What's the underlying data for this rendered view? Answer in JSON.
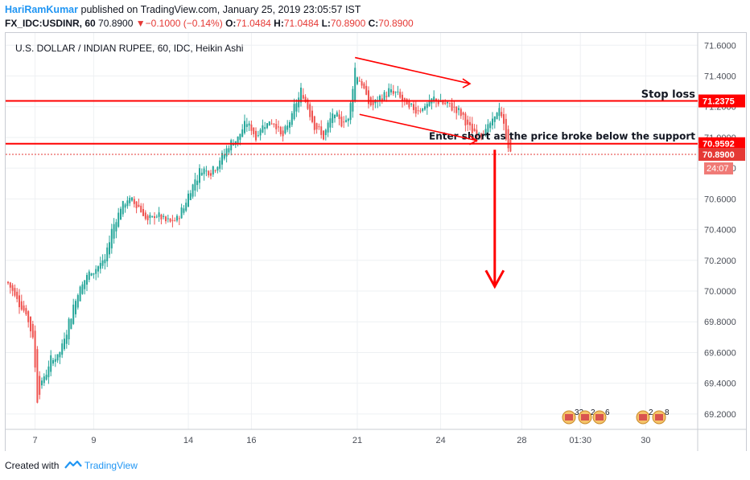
{
  "header": {
    "author": "HariRamKumar",
    "published_text": " published on TradingView.com, January 25, 2019 23:05:57 IST",
    "symbol": "FX_IDC:USDINR, 60",
    "last": "70.8900",
    "change_arrow": "▼",
    "change": "−0.1000 (−0.14%)",
    "open_label": "O:",
    "open": "71.0484",
    "high_label": "H:",
    "high": "71.0484",
    "low_label": "L:",
    "low": "70.8900",
    "close_label": "C:",
    "close": "70.8900"
  },
  "footer": {
    "created_with": "Created with",
    "brand": "TradingView",
    "logo_icon": "tradingview-logo-icon"
  },
  "colors": {
    "up": "#26a69a",
    "down": "#ef5350",
    "annotation": "#ff0000",
    "grid": "#eef0f3",
    "axis_text": "#4a4e57"
  },
  "chart_data": {
    "type": "candlestick",
    "title": "U.S. DOLLAR / INDIAN RUPEE, 60, IDC, Heikin Ashi",
    "ylim": [
      69.1,
      71.68
    ],
    "y_ticks": [
      "71.6000",
      "71.4000",
      "71.2000",
      "71.0000",
      "70.8000",
      "70.6000",
      "70.4000",
      "70.2000",
      "70.0000",
      "69.8000",
      "69.6000",
      "69.4000",
      "69.2000"
    ],
    "x_ticks": [
      "7",
      "9",
      "14",
      "16",
      "21",
      "24",
      "28",
      "01:30",
      "30"
    ],
    "x_tick_index": [
      12,
      38,
      80,
      108,
      155,
      192,
      228,
      254,
      283
    ],
    "waypoints": [
      [
        0,
        70.05
      ],
      [
        4,
        69.95
      ],
      [
        8,
        69.85
      ],
      [
        11,
        69.7
      ],
      [
        13,
        69.3
      ],
      [
        15,
        69.4
      ],
      [
        19,
        69.55
      ],
      [
        23,
        69.6
      ],
      [
        27,
        69.8
      ],
      [
        31,
        70.0
      ],
      [
        35,
        70.1
      ],
      [
        39,
        70.15
      ],
      [
        43,
        70.2
      ],
      [
        46,
        70.4
      ],
      [
        50,
        70.55
      ],
      [
        54,
        70.6
      ],
      [
        58,
        70.55
      ],
      [
        62,
        70.45
      ],
      [
        66,
        70.5
      ],
      [
        70,
        70.45
      ],
      [
        74,
        70.45
      ],
      [
        78,
        70.55
      ],
      [
        82,
        70.7
      ],
      [
        86,
        70.8
      ],
      [
        90,
        70.78
      ],
      [
        94,
        70.85
      ],
      [
        98,
        70.95
      ],
      [
        102,
        71.0
      ],
      [
        106,
        71.1
      ],
      [
        110,
        71.0
      ],
      [
        114,
        71.1
      ],
      [
        118,
        71.1
      ],
      [
        122,
        71.0
      ],
      [
        126,
        71.15
      ],
      [
        130,
        71.3
      ],
      [
        133,
        71.2
      ],
      [
        136,
        71.08
      ],
      [
        140,
        71.0
      ],
      [
        144,
        71.15
      ],
      [
        148,
        71.1
      ],
      [
        151,
        71.12
      ],
      [
        154,
        71.45
      ],
      [
        158,
        71.3
      ],
      [
        161,
        71.2
      ],
      [
        165,
        71.25
      ],
      [
        169,
        71.3
      ],
      [
        173,
        71.28
      ],
      [
        177,
        71.2
      ],
      [
        181,
        71.18
      ],
      [
        185,
        71.2
      ],
      [
        189,
        71.25
      ],
      [
        193,
        71.22
      ],
      [
        197,
        71.2
      ],
      [
        201,
        71.15
      ],
      [
        205,
        71.05
      ],
      [
        208,
        71.02
      ],
      [
        212,
        71.05
      ],
      [
        215,
        71.1
      ],
      [
        218,
        71.2
      ],
      [
        221,
        71.0
      ],
      [
        223,
        70.89
      ]
    ],
    "levels": [
      {
        "name": "Stop loss level",
        "value": 71.2375,
        "label": "71.2375",
        "color": "#ff0000"
      },
      {
        "name": "Support level",
        "value": 70.9592,
        "label": "70.9592",
        "color": "#ff0000"
      },
      {
        "name": "Last price",
        "value": 70.89,
        "label": "70.8900",
        "color": "#e53935",
        "dotted": true
      }
    ],
    "countdown": "24:07",
    "annotations": {
      "stop_loss": "Stop loss",
      "enter_short": "Enter short as the price broke below the support"
    },
    "channel": {
      "upper": [
        [
          154,
          71.52
        ],
        [
          205,
          71.35
        ]
      ],
      "lower": [
        [
          156,
          71.15
        ],
        [
          208,
          70.98
        ]
      ]
    },
    "down_arrow": [
      [
        216,
        70.92
      ],
      [
        216,
        70.03
      ]
    ],
    "events": [
      {
        "label": "33",
        "flag": "us-flag-icon"
      },
      {
        "label": "2",
        "flag": "us-flag-icon"
      },
      {
        "label": "6",
        "flag": "us-flag-icon"
      },
      {
        "label": "2",
        "flag": "us-flag-icon"
      },
      {
        "label": "8",
        "flag": "us-flag-icon"
      }
    ]
  }
}
